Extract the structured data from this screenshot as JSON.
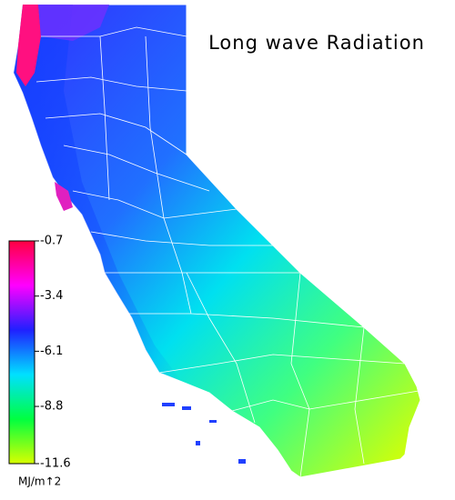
{
  "title": "Long wave Radiation",
  "colorbar": {
    "unit": "MJ/m↑2",
    "lim": [
      -0.7,
      -11.6
    ],
    "ticks": [
      -0.7,
      -3.4,
      -6.1,
      -8.8,
      -11.6
    ],
    "colors": [
      "#ff0040",
      "#ff00ff",
      "#2020ff",
      "#00e0ff",
      "#00ff40",
      "#d8ff00"
    ]
  }
}
